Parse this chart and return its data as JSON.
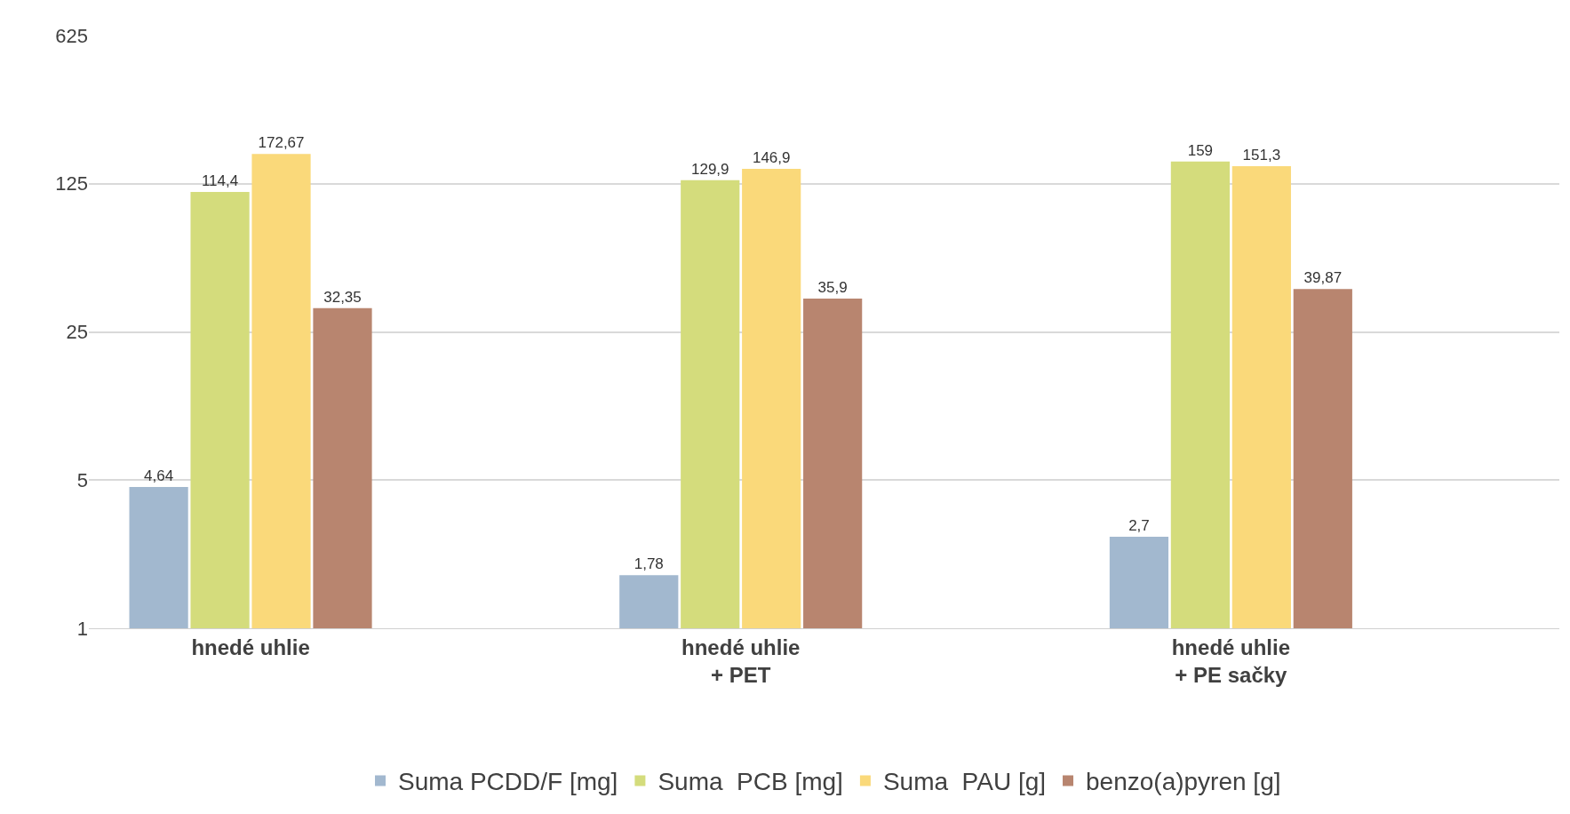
{
  "chart_data": {
    "type": "bar",
    "categories": [
      "hnedé uhlie",
      "hnedé uhlie\n+ PET",
      "hnedé uhlie\n+ PE sačky"
    ],
    "series": [
      {
        "name": "Suma PCDD/F [mg]",
        "color": "#a2b8cf",
        "values": [
          4.64,
          1.78,
          2.7
        ],
        "value_labels": [
          "4,64",
          "1,78",
          "2,7"
        ]
      },
      {
        "name": "Suma  PCB [mg]",
        "color": "#d4dc7c",
        "values": [
          114.4,
          129.9,
          159
        ],
        "value_labels": [
          "114,4",
          "129,9",
          "159"
        ]
      },
      {
        "name": "Suma  PAU [g]",
        "color": "#fad97a",
        "values": [
          172.67,
          146.9,
          151.3
        ],
        "value_labels": [
          "172,67",
          "146,9",
          "151,3"
        ]
      },
      {
        "name": "benzo(a)pyren [g]",
        "color": "#b8856f",
        "values": [
          32.35,
          35.9,
          39.87
        ],
        "value_labels": [
          "32,35",
          "35,9",
          "39,87"
        ]
      }
    ],
    "log": "y",
    "ylim": [
      1,
      625
    ],
    "yticks": [
      1,
      5,
      25,
      125,
      625
    ],
    "grid": "y",
    "legend": "bottom"
  }
}
